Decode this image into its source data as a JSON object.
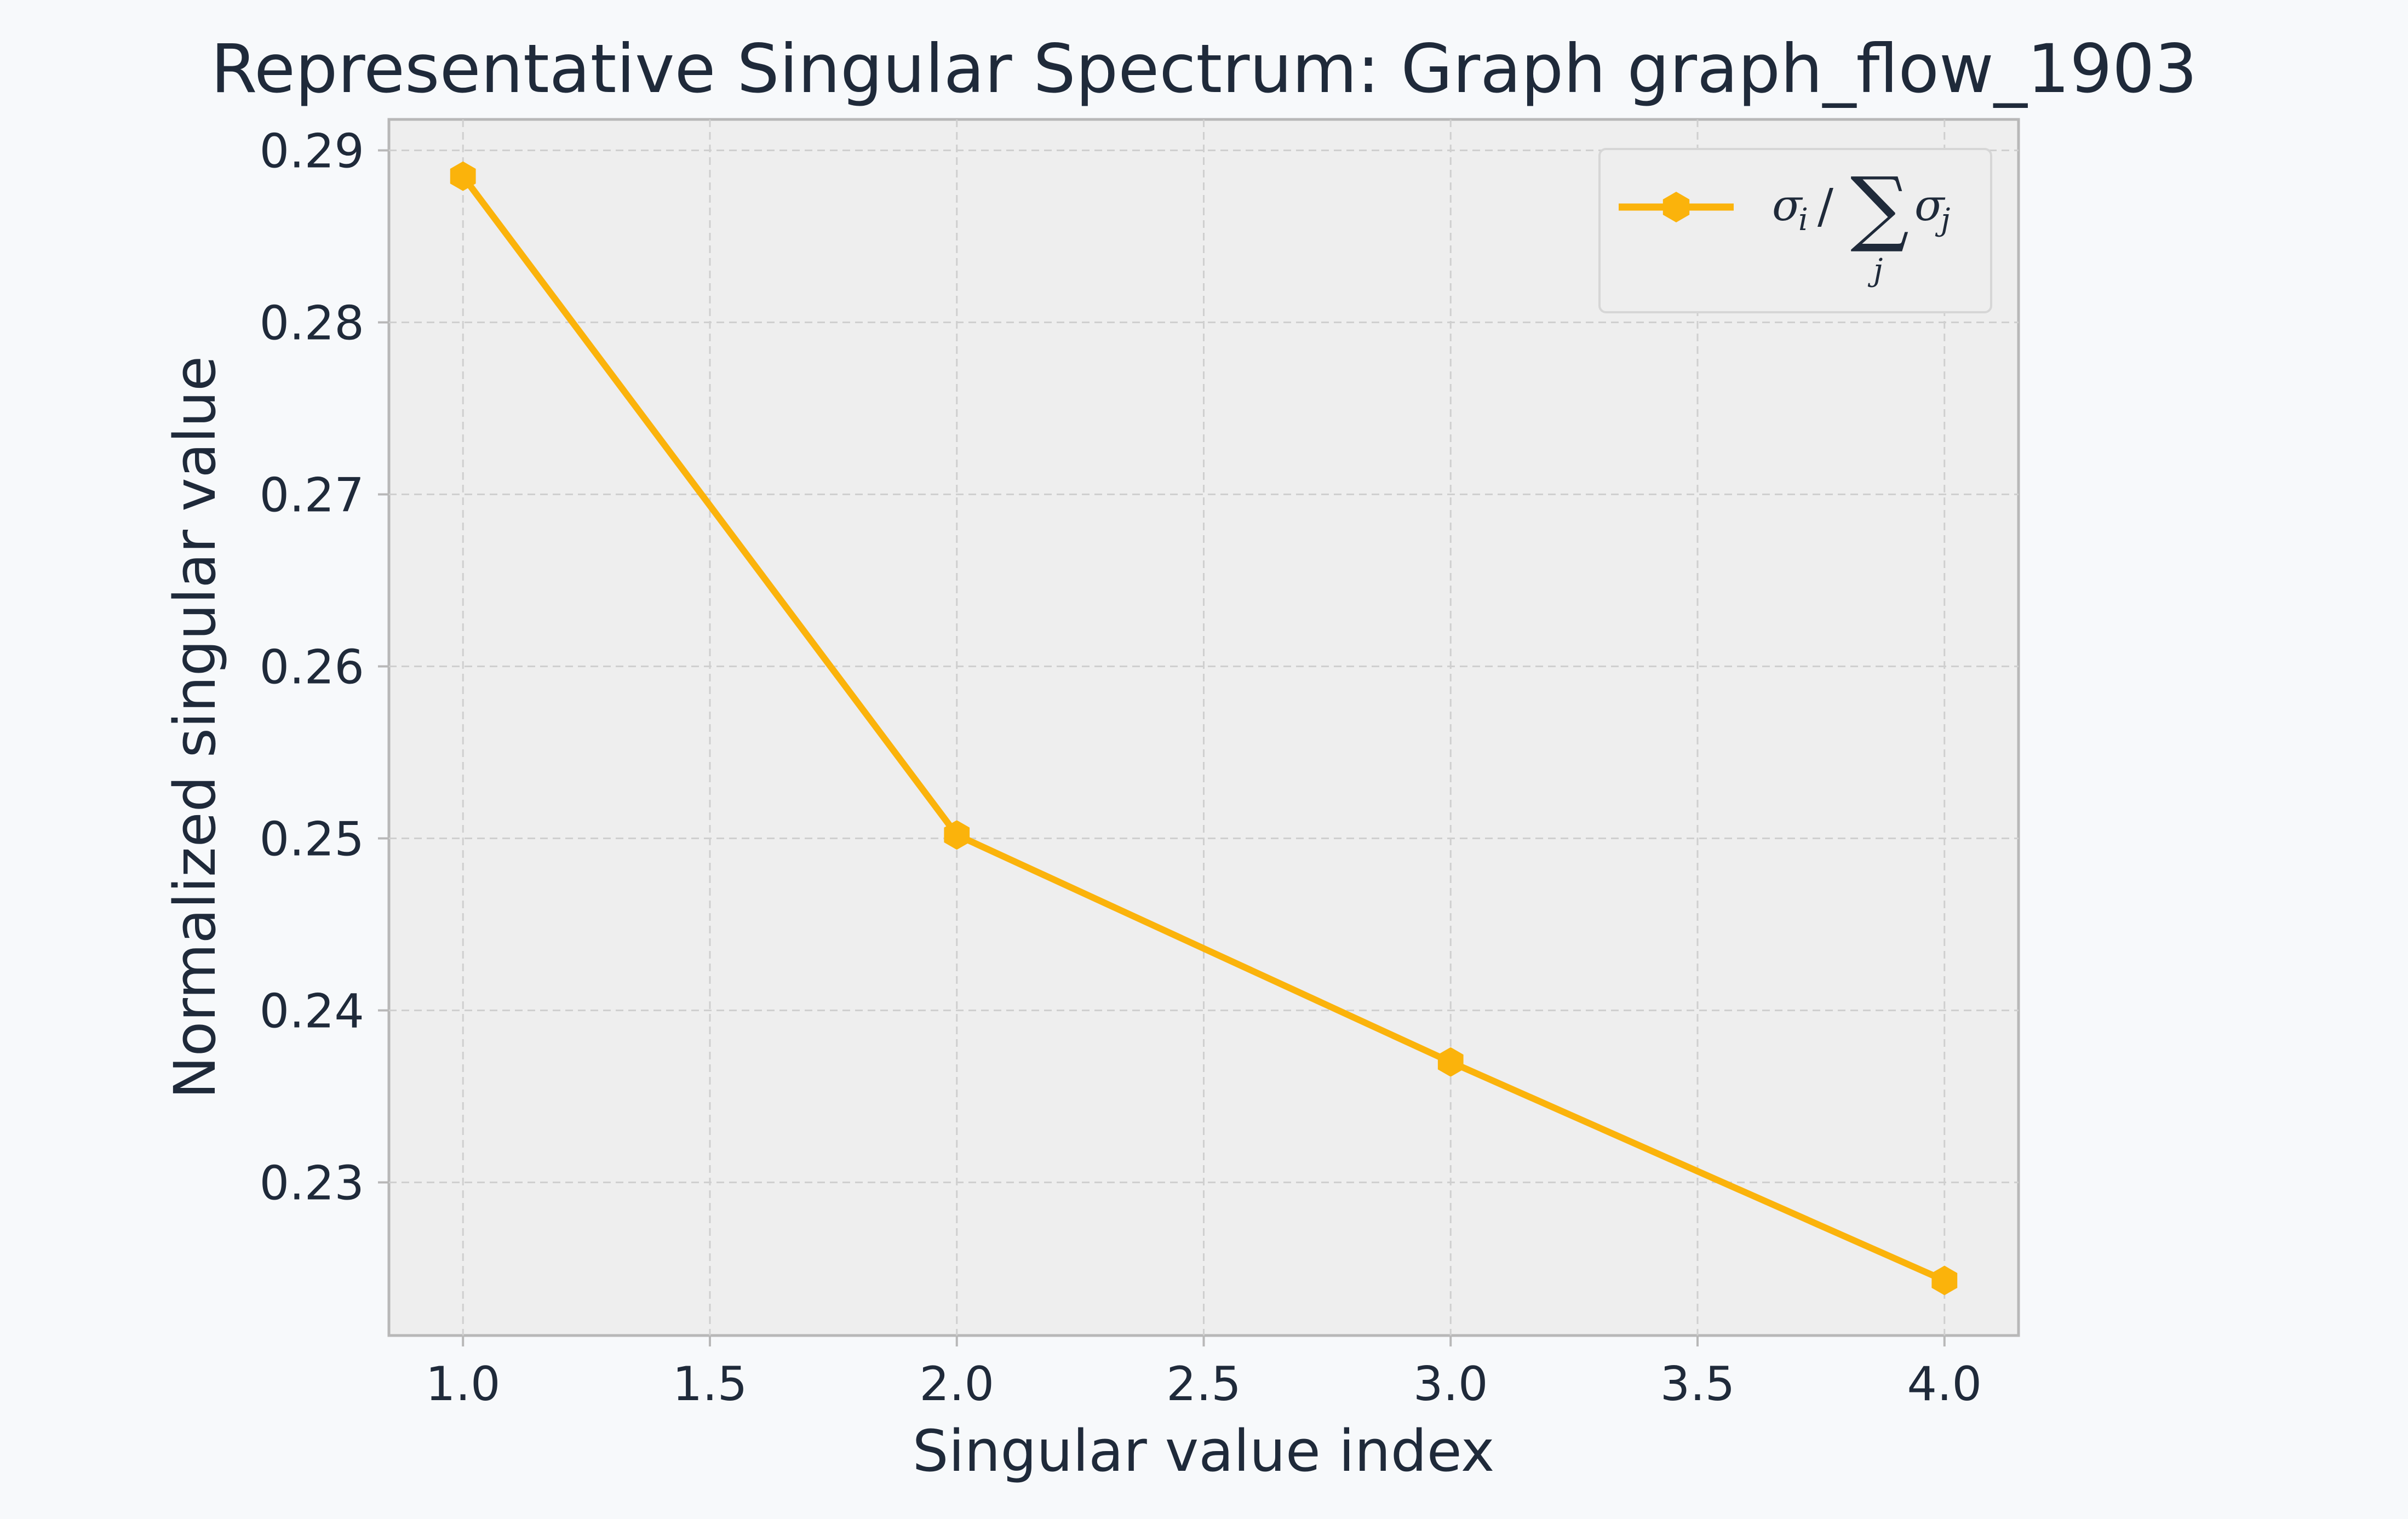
{
  "chart_data": {
    "type": "line",
    "title": "Representative Singular Spectrum: Graph graph_flow_1903",
    "xlabel": "Singular value index",
    "ylabel": "Normalized singular value",
    "x": [
      1,
      2,
      3,
      4
    ],
    "series": [
      {
        "name": "σ_i / Σ_j σ_j",
        "values": [
          0.2885,
          0.2502,
          0.237,
          0.2243
        ],
        "color": "#fbb30b",
        "marker": "hexagon"
      }
    ],
    "xlim": [
      0.85,
      4.15
    ],
    "ylim": [
      0.2211,
      0.2918
    ],
    "xticks": [
      "1.0",
      "1.5",
      "2.0",
      "2.5",
      "3.0",
      "3.5",
      "4.0"
    ],
    "yticks": [
      "0.23",
      "0.24",
      "0.25",
      "0.26",
      "0.27",
      "0.28",
      "0.29"
    ],
    "grid": true,
    "legend_position": "top-right",
    "colors": {
      "page_background": "#f7f9fb",
      "plot_background": "#eeeeee",
      "grid": "#cfcfcf",
      "axes": "#b8b8b8",
      "text": "#1f2a3a"
    }
  }
}
